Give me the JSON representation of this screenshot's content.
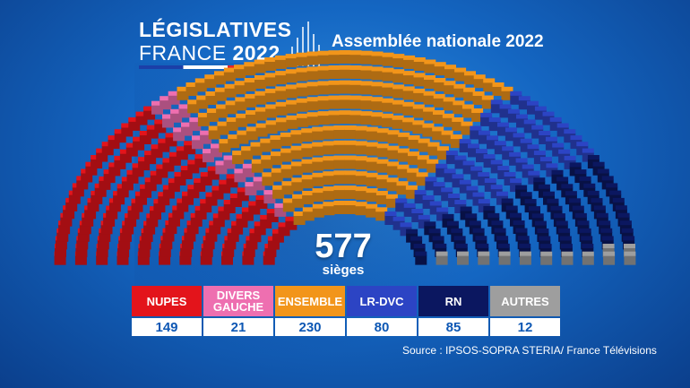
{
  "header": {
    "logo_line1": "LÉGISLATIVES",
    "logo_line2_word": "FRANCE",
    "logo_line2_year": "2022",
    "subtitle": "Assemblée nationale 2022"
  },
  "total": {
    "value": "577",
    "label": "sièges"
  },
  "source": "Source : IPSOS-SOPRA STERIA/ France Télévisions",
  "chart_data": {
    "type": "parliament-hemicycle",
    "title": "Assemblée nationale 2022",
    "total_seats": 577,
    "categories": [
      "NUPES",
      "DIVERS\nGAUCHE",
      "ENSEMBLE",
      "LR-DVC",
      "RN",
      "AUTRES"
    ],
    "values": [
      149,
      21,
      230,
      80,
      85,
      12
    ],
    "colors": [
      "#e3141b",
      "#ee6fb0",
      "#f2951a",
      "#2c44c4",
      "#0b1760",
      "#9e9e9e"
    ]
  }
}
